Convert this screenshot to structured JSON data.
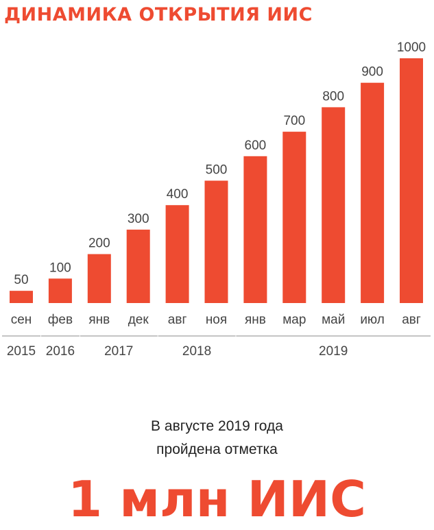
{
  "colors": {
    "accent": "#EE4B31",
    "text": "#444444",
    "year_line": "#888888"
  },
  "title": "ДИНАМИКА ОТКРЫТИЯ ИИС",
  "chart_data": {
    "type": "bar",
    "categories": [
      "сен",
      "фев",
      "янв",
      "дек",
      "авг",
      "ноя",
      "янв",
      "мар",
      "май",
      "июл",
      "авг"
    ],
    "values": [
      50,
      100,
      200,
      300,
      400,
      500,
      600,
      700,
      800,
      900,
      1000
    ],
    "value_labels": [
      "50",
      "100",
      "200",
      "300",
      "400",
      "500",
      "600",
      "700",
      "800",
      "900",
      "1000"
    ],
    "year_groups": [
      {
        "label": "2015",
        "first": 0,
        "last": 0
      },
      {
        "label": "2016",
        "first": 1,
        "last": 1
      },
      {
        "label": "2017",
        "first": 2,
        "last": 3
      },
      {
        "label": "2018",
        "first": 4,
        "last": 5
      },
      {
        "label": "2019",
        "first": 6,
        "last": 10
      }
    ],
    "ylim": [
      0,
      1000
    ],
    "grid": false,
    "legend": "none"
  },
  "footer": {
    "line1": "В августе 2019 года",
    "line2": "пройдена отметка",
    "highlight": "1 млн ИИС"
  }
}
